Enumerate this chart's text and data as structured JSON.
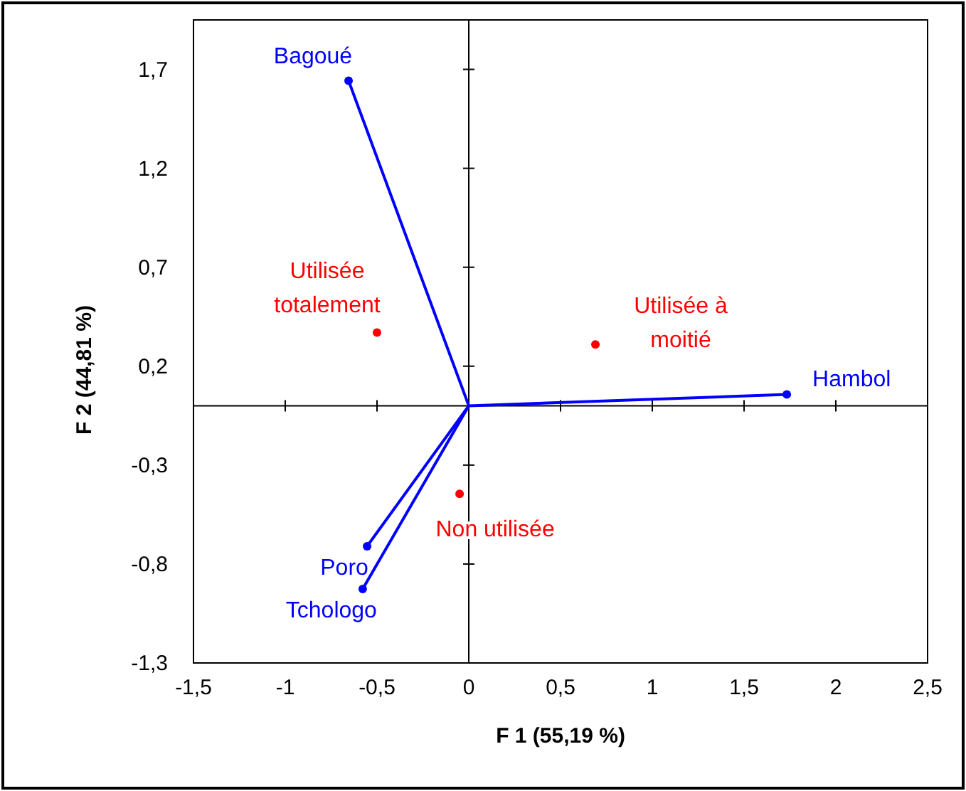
{
  "chart_data": {
    "type": "scatter",
    "xlabel": "F 1 (55,19 %)",
    "ylabel": "F 2 (44,81 %)",
    "xlim": [
      -1.5,
      2.5
    ],
    "ylim": [
      -1.3,
      1.95
    ],
    "xticks": [
      {
        "value": -1.5,
        "label": "-1,5"
      },
      {
        "value": -1,
        "label": "-1"
      },
      {
        "value": -0.5,
        "label": "-0,5"
      },
      0,
      {
        "value": 0.5,
        "label": "0,5"
      },
      1,
      {
        "value": 1.5,
        "label": "1,5"
      },
      2,
      {
        "value": 2.5,
        "label": "2,5"
      }
    ],
    "yticks": [
      {
        "value": -1.3,
        "label": "-1,3"
      },
      {
        "value": -0.8,
        "label": "-0,8"
      },
      {
        "value": -0.3,
        "label": "-0,3"
      },
      {
        "value": 0.2,
        "label": "0,2"
      },
      {
        "value": 0.7,
        "label": "0,7"
      },
      {
        "value": 1.2,
        "label": "1,2"
      },
      {
        "value": 1.7,
        "label": "1,7"
      }
    ],
    "marker": "circle",
    "series": [
      {
        "type": "line",
        "color": "#0000ff",
        "x": [
          0,
          -0.655
        ],
        "values": [
          0,
          1.643
        ],
        "marker": "none"
      },
      {
        "type": "line",
        "color": "#0000ff",
        "x": [
          0,
          1.733
        ],
        "values": [
          0,
          0.057
        ],
        "marker": "none"
      },
      {
        "type": "line",
        "color": "#0000ff",
        "x": [
          0,
          -0.554
        ],
        "values": [
          0,
          -0.71
        ],
        "marker": "none"
      },
      {
        "type": "line",
        "color": "#0000ff",
        "x": [
          0,
          -0.578
        ],
        "values": [
          0,
          -0.926
        ],
        "marker": "none"
      },
      {
        "color": "#0000ff",
        "x": [
          -0.655,
          1.733,
          -0.554,
          -0.578
        ],
        "values": [
          1.643,
          0.057,
          -0.71,
          -0.926
        ]
      },
      {
        "color": "#ff0000",
        "x": [
          -0.5,
          0.69,
          -0.05
        ],
        "values": [
          0.37,
          0.31,
          -0.445
        ]
      }
    ],
    "annotations": [
      {
        "text": "Bagoué",
        "x": -0.655,
        "y": 1.643
      },
      {
        "text": "Hambol",
        "x": 1.733,
        "y": 0.057
      },
      {
        "text": "Poro",
        "x": -0.554,
        "y": -0.71
      },
      {
        "text": "Tchologo",
        "x": -0.578,
        "y": -0.926
      },
      {
        "text": "Utilisée\ntotalement",
        "x": -0.5,
        "y": 0.37
      },
      {
        "text": "Utilisée à\nmoitié",
        "x": 0.69,
        "y": 0.31
      },
      {
        "text": "Non utilisée",
        "x": -0.05,
        "y": -0.445
      }
    ]
  }
}
